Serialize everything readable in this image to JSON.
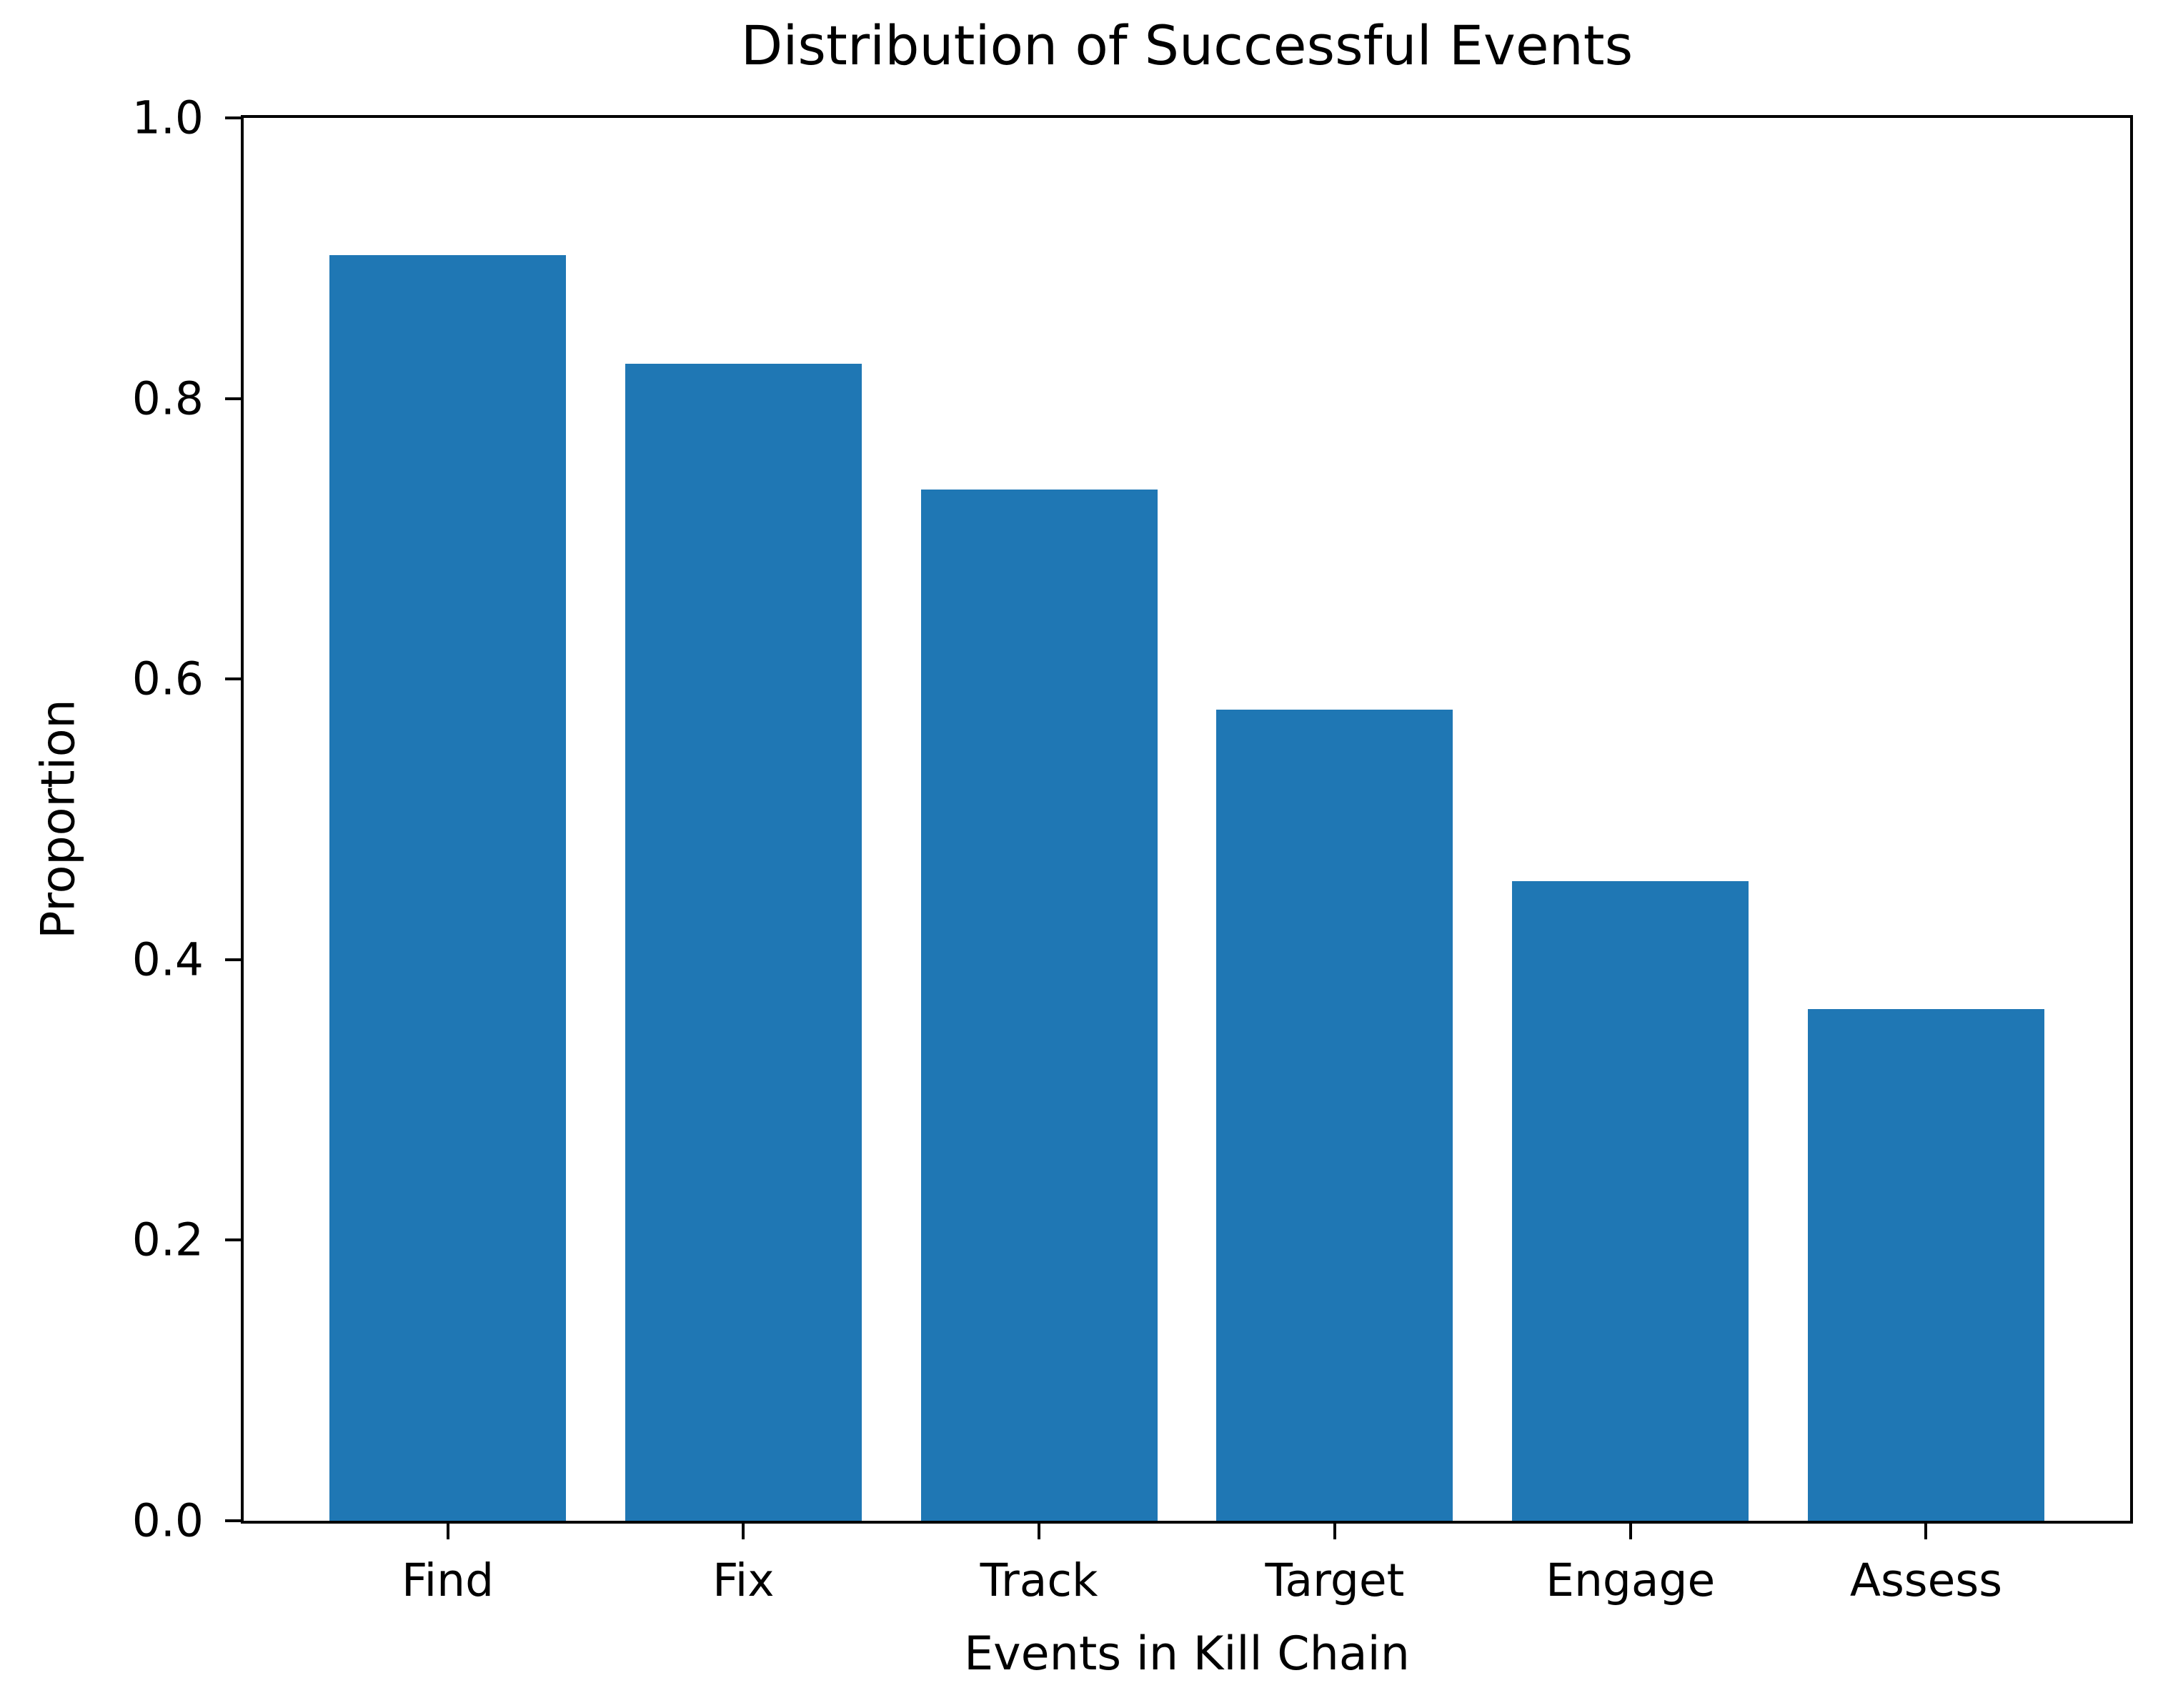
{
  "chart_data": {
    "type": "bar",
    "title": "Distribution of Successful Events",
    "xlabel": "Events in Kill Chain",
    "ylabel": "Proportion",
    "categories": [
      "Find",
      "Fix",
      "Track",
      "Target",
      "Engage",
      "Assess"
    ],
    "values": [
      0.902,
      0.825,
      0.735,
      0.578,
      0.456,
      0.365
    ],
    "ylim": [
      0.0,
      1.0
    ],
    "yticks": [
      0.0,
      0.2,
      0.4,
      0.6,
      0.8,
      1.0
    ],
    "ytick_labels": [
      "0.0",
      "0.2",
      "0.4",
      "0.6",
      "0.8",
      "1.0"
    ],
    "bar_color": "#1f77b4",
    "grid": false,
    "legend": "none",
    "layout": {
      "bar_width_fraction": 0.8,
      "x_axis_units_left_pad": 0.69,
      "x_axis_units_right_pad": 0.69
    }
  }
}
